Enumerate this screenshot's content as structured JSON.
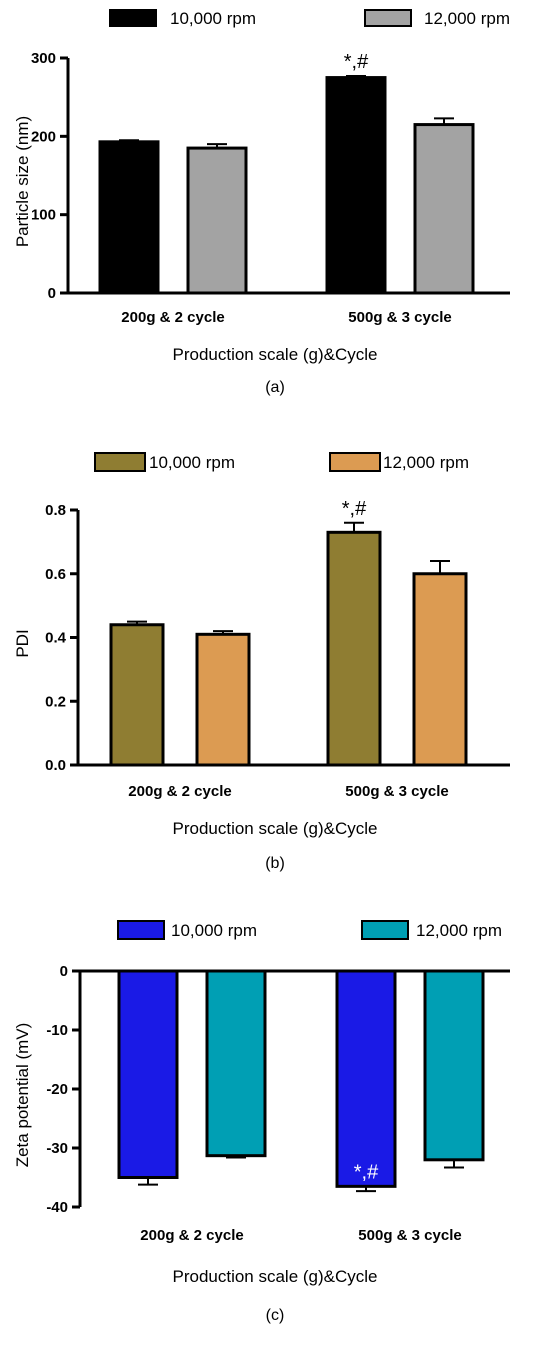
{
  "chart_data": [
    {
      "type": "bar",
      "panel_label": "(a)",
      "categories": [
        "200g & 2 cycle",
        "500g & 3 cycle"
      ],
      "series": [
        {
          "name": "10,000 rpm",
          "color": "#000000",
          "values": [
            193,
            275
          ],
          "errors": [
            2,
            2
          ],
          "annotations": [
            "",
            "*,#"
          ]
        },
        {
          "name": "12,000 rpm",
          "color": "#a3a3a3",
          "values": [
            185,
            215
          ],
          "errors": [
            5,
            8
          ],
          "annotations": [
            "",
            ""
          ]
        }
      ],
      "xlabel": "Production scale (g)&Cycle",
      "ylabel": "Particle size (nm)",
      "ylim": [
        0,
        300
      ],
      "yticks": [
        0,
        100,
        200,
        300
      ],
      "ytick_labels": [
        "0",
        "100",
        "200",
        "300"
      ],
      "grid": false,
      "legend_position": "top"
    },
    {
      "type": "bar",
      "panel_label": "(b)",
      "categories": [
        "200g & 2 cycle",
        "500g & 3 cycle"
      ],
      "series": [
        {
          "name": "10,000 rpm",
          "color": "#8f7d32",
          "values": [
            0.44,
            0.73
          ],
          "errors": [
            0.01,
            0.03
          ],
          "annotations": [
            "",
            "*,#"
          ]
        },
        {
          "name": "12,000 rpm",
          "color": "#dc9b52",
          "values": [
            0.41,
            0.6
          ],
          "errors": [
            0.01,
            0.04
          ],
          "annotations": [
            "",
            ""
          ]
        }
      ],
      "xlabel": "Production scale (g)&Cycle",
      "ylabel": "PDI",
      "ylim": [
        0,
        0.8
      ],
      "yticks": [
        0,
        0.2,
        0.4,
        0.6,
        0.8
      ],
      "ytick_labels": [
        "0.0",
        "0.2",
        "0.4",
        "0.6",
        "0.8"
      ],
      "grid": false,
      "legend_position": "top"
    },
    {
      "type": "bar",
      "panel_label": "(c)",
      "categories": [
        "200g & 2 cycle",
        "500g & 3 cycle"
      ],
      "series": [
        {
          "name": "10,000 rpm",
          "color": "#1a1ae6",
          "values": [
            -35.0,
            -36.5
          ],
          "errors": [
            1.2,
            0.8
          ],
          "annotations": [
            "",
            "*,#"
          ]
        },
        {
          "name": "12,000 rpm",
          "color": "#009fb4",
          "values": [
            -31.3,
            -32.0
          ],
          "errors": [
            0.3,
            1.3
          ],
          "annotations": [
            "",
            ""
          ]
        }
      ],
      "xlabel": "Production scale (g)&Cycle",
      "ylabel": "Zeta potential (mV)",
      "ylim": [
        -40,
        0
      ],
      "yticks": [
        -40,
        -30,
        -20,
        -10,
        0
      ],
      "ytick_labels": [
        "-40",
        "-30",
        "-20",
        "-10",
        "0"
      ],
      "grid": false,
      "legend_position": "top"
    }
  ]
}
